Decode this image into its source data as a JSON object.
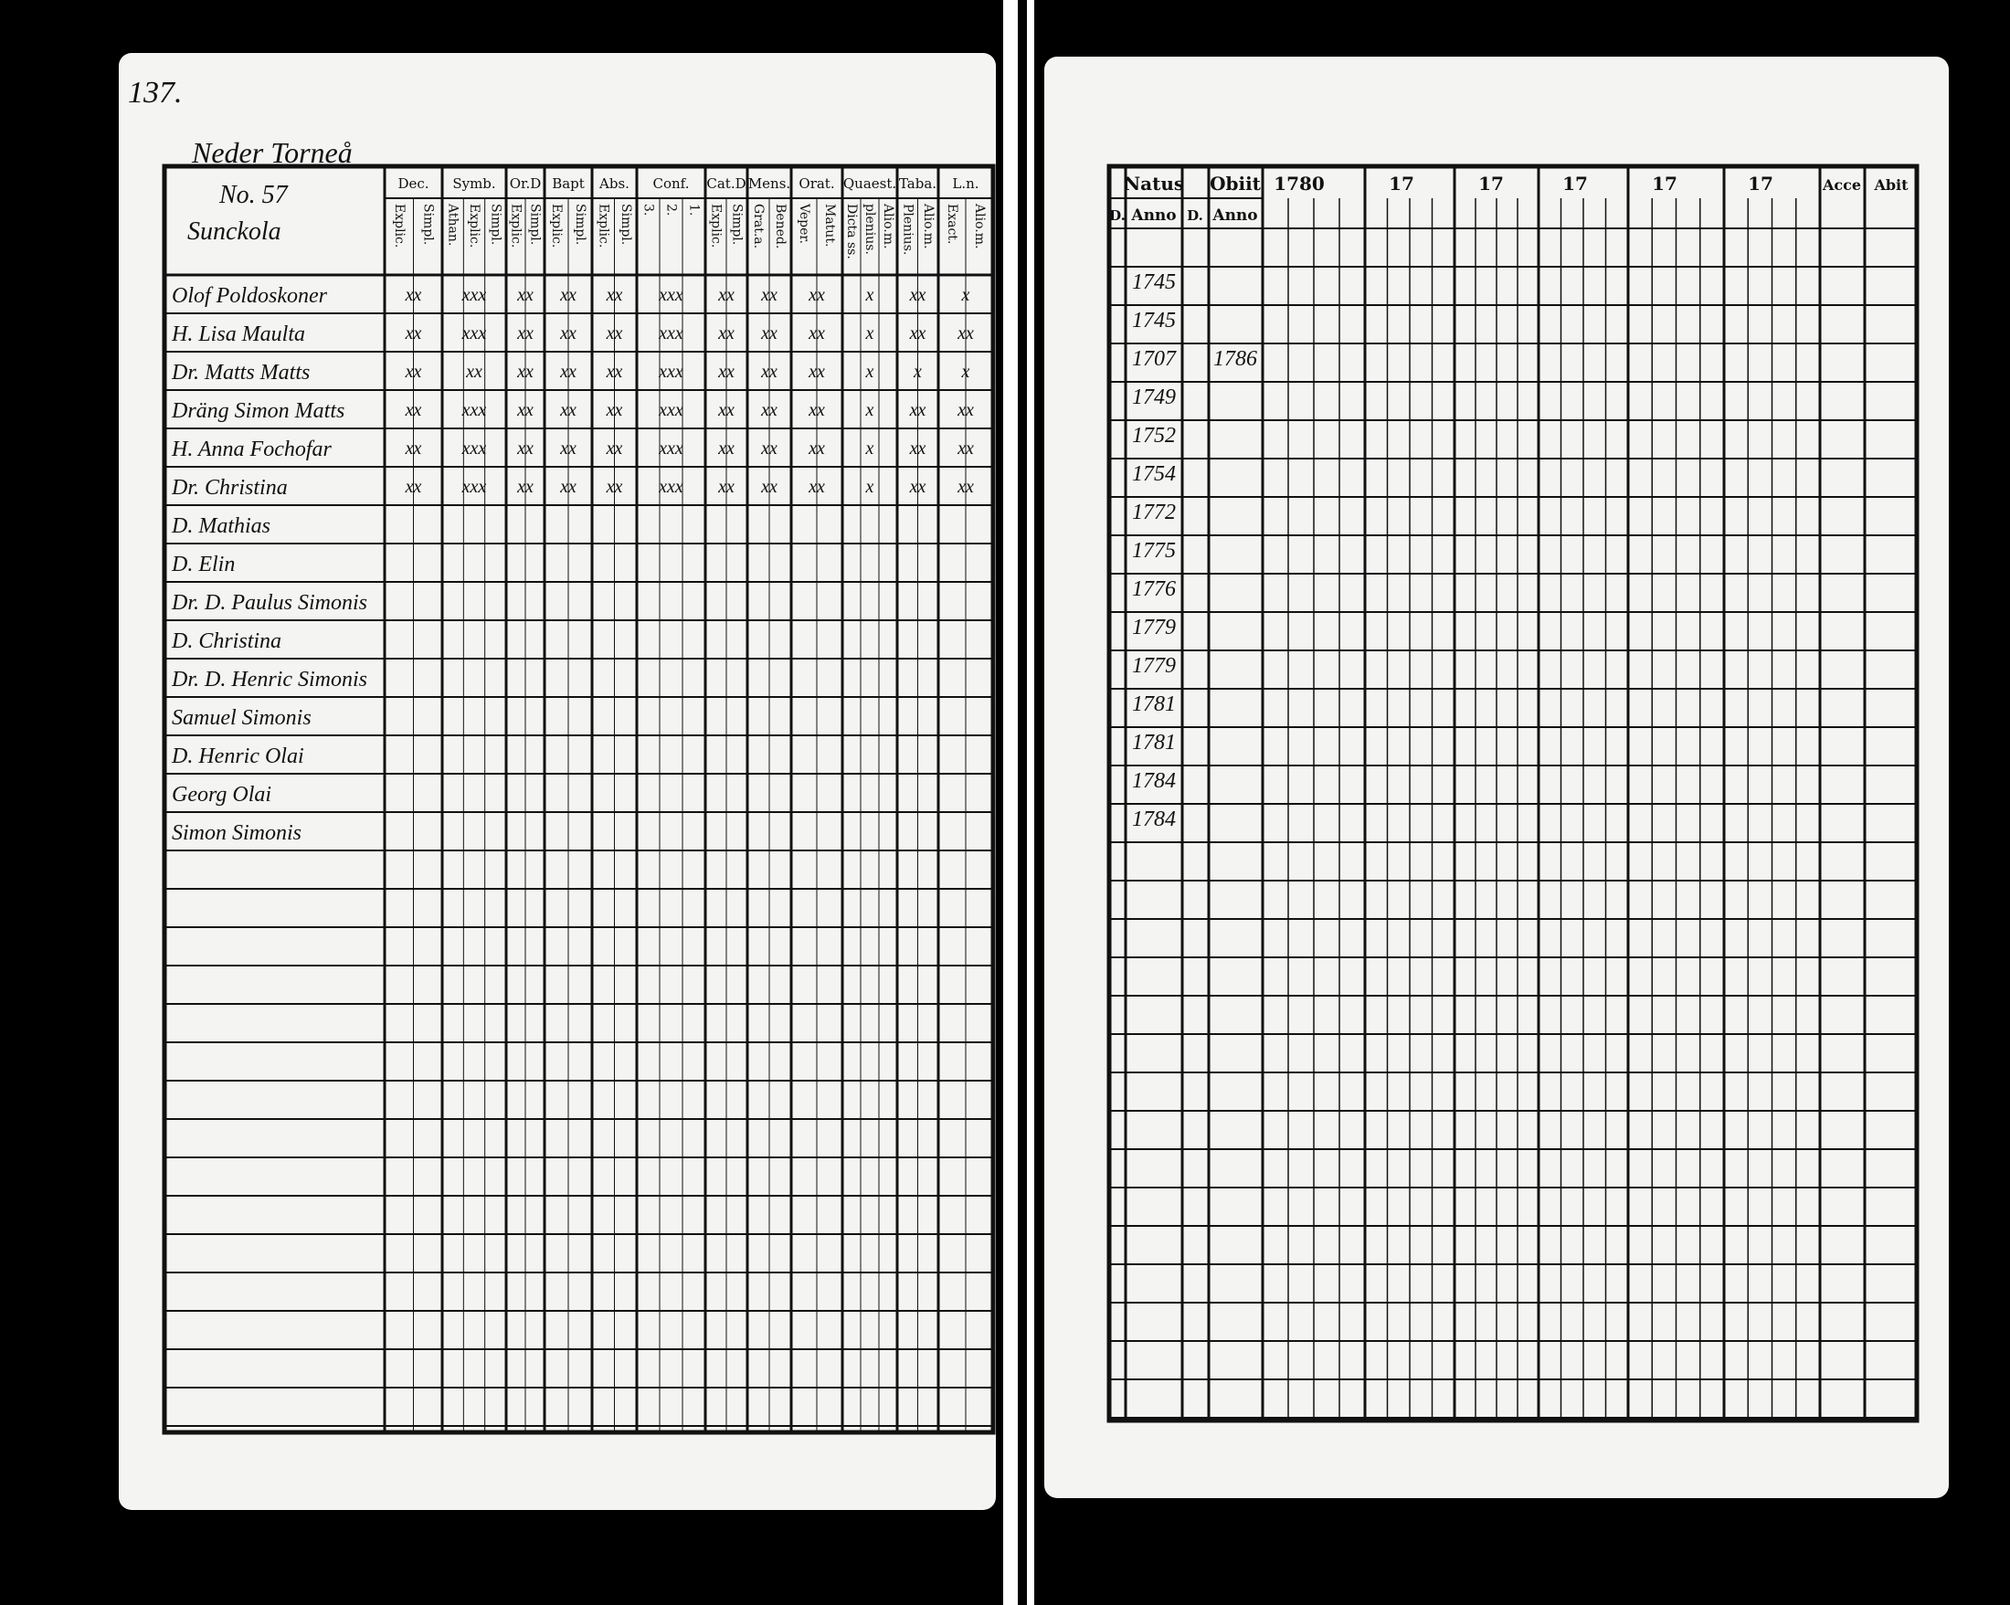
{
  "left_page": {
    "page_number": "137.",
    "parish": "Neder Torneå",
    "household": "No. 57",
    "farm": "Sunckola",
    "columns": [
      {
        "header": "Dec.",
        "sub": [
          "Explic.",
          "Simpl."
        ]
      },
      {
        "header": "Symb.",
        "sub": [
          "Athan.",
          "Explic.",
          "Simpl."
        ]
      },
      {
        "header": "Or.D",
        "sub": [
          "Explic.",
          "Simpl."
        ]
      },
      {
        "header": "Bapt",
        "sub": [
          "Explic.",
          "Simpl."
        ]
      },
      {
        "header": "Abs.",
        "sub": [
          "Explic.",
          "Simpl."
        ]
      },
      {
        "header": "Conf.",
        "sub": [
          "3.",
          "2.",
          "1."
        ]
      },
      {
        "header": "Cat.D",
        "sub": [
          "Explic.",
          "Simpl."
        ]
      },
      {
        "header": "Mens.",
        "sub": [
          "Grat.a.",
          "Bened."
        ]
      },
      {
        "header": "Orat.",
        "sub": [
          "Veper.",
          "Matut."
        ]
      },
      {
        "header": "Quaest.",
        "sub": [
          "Dicta ss.",
          "plenius.",
          "Alio.m."
        ]
      },
      {
        "header": "Taba.",
        "sub": [
          "Plenius.",
          "Alio.m."
        ]
      },
      {
        "header": "L.n.",
        "sub": [
          "Exact.",
          "Alio.m."
        ]
      }
    ],
    "people": [
      {
        "name": "Olof Poldoskoner",
        "marks": [
          "xx",
          "xxx",
          "xx",
          "xx",
          "xx",
          "xxx",
          "xx",
          "xx",
          "xx",
          "x",
          "xx",
          "x"
        ]
      },
      {
        "name": "H. Lisa Maulta",
        "marks": [
          "xx",
          "xxx",
          "xx",
          "xx",
          "xx",
          "xxx",
          "xx",
          "xx",
          "xx",
          "x",
          "xx",
          "xx"
        ]
      },
      {
        "name": "Dr. Matts Matts",
        "marks": [
          "xx",
          "xx",
          "xx",
          "xx",
          "xx",
          "xxx",
          "xx",
          "xx",
          "xx",
          "x",
          "x",
          "x"
        ]
      },
      {
        "name": "Dräng Simon Matts",
        "marks": [
          "xx",
          "xxx",
          "xx",
          "xx",
          "xx",
          "xxx",
          "xx",
          "xx",
          "xx",
          "x",
          "xx",
          "xx"
        ]
      },
      {
        "name": "H. Anna Fochofar",
        "marks": [
          "xx",
          "xxx",
          "xx",
          "xx",
          "xx",
          "xxx",
          "xx",
          "xx",
          "xx",
          "x",
          "xx",
          "xx"
        ]
      },
      {
        "name": "Dr. Christina",
        "marks": [
          "xx",
          "xxx",
          "xx",
          "xx",
          "xx",
          "xxx",
          "xx",
          "xx",
          "xx",
          "x",
          "xx",
          "xx"
        ]
      },
      {
        "name": "D. Mathias"
      },
      {
        "name": "D. Elin"
      },
      {
        "name": "Dr. D. Paulus Simonis"
      },
      {
        "name": "D. Christina"
      },
      {
        "name": "Dr. D. Henric Simonis"
      },
      {
        "name": "Samuel Simonis"
      },
      {
        "name": "D. Henric Olai"
      },
      {
        "name": "Georg Olai"
      },
      {
        "name": "Simon Simonis"
      }
    ]
  },
  "right_page": {
    "natus": "Natus",
    "obiit": "Obiit",
    "day": "D.",
    "anno": "Anno",
    "years": [
      "1780",
      "17",
      "17",
      "17",
      "17",
      "17"
    ],
    "accessit": "Acce",
    "abiit": "Abit",
    "rows": [
      {
        "birth": "1745"
      },
      {
        "birth": "1745"
      },
      {
        "birth": "1707",
        "death": "1786"
      },
      {
        "birth": "1749"
      },
      {
        "birth": "1752"
      },
      {
        "birth": "1754"
      },
      {
        "birth": "1772"
      },
      {
        "birth": "1775"
      },
      {
        "birth": "1776"
      },
      {
        "birth": "1779"
      },
      {
        "birth": "1779"
      },
      {
        "birth": "1781"
      },
      {
        "birth": "1781"
      },
      {
        "birth": "1784"
      },
      {
        "birth": "1784"
      }
    ]
  }
}
